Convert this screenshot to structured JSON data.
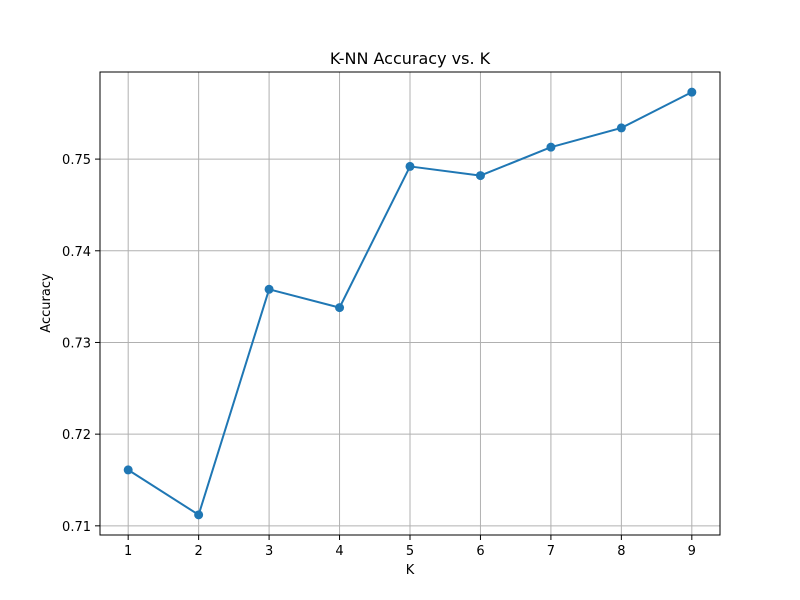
{
  "chart_data": {
    "type": "line",
    "title": "K-NN Accuracy vs. K",
    "xlabel": "K",
    "ylabel": "Accuracy",
    "x": [
      1,
      2,
      3,
      4,
      5,
      6,
      7,
      8,
      9
    ],
    "x_ticks": [
      "1",
      "2",
      "3",
      "4",
      "5",
      "6",
      "7",
      "8",
      "9"
    ],
    "y_ticks": [
      "0.71",
      "0.72",
      "0.73",
      "0.74",
      "0.75"
    ],
    "series": [
      {
        "values": [
          0.7161,
          0.7112,
          0.7358,
          0.7338,
          0.7492,
          0.7482,
          0.7513,
          0.7534,
          0.7573
        ],
        "color": "#1f77b4",
        "marker": "circle"
      }
    ],
    "xlim": [
      0.6,
      9.4
    ],
    "ylim": [
      0.709,
      0.7595
    ],
    "grid": true,
    "legend": "none"
  }
}
